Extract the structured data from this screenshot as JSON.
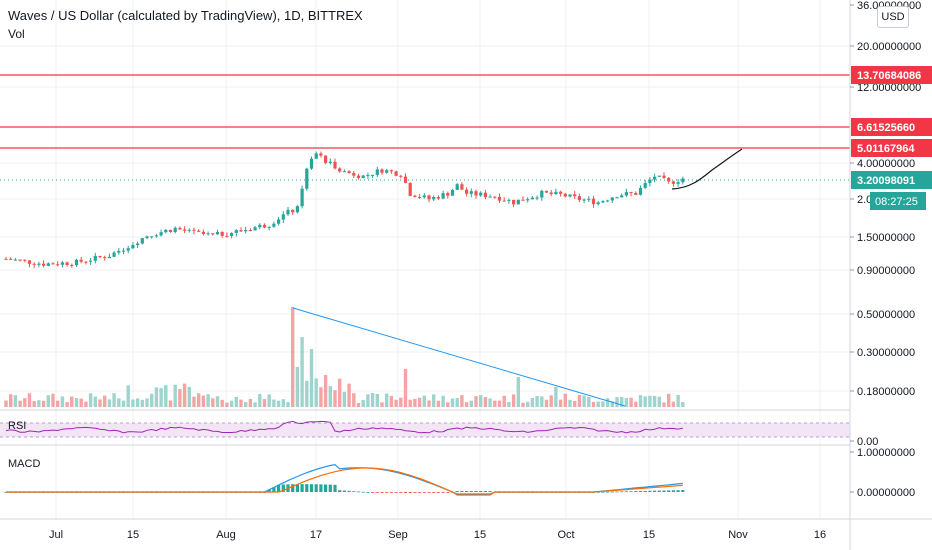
{
  "header": {
    "title": "Waves / US Dollar (calculated by TradingView), 1D, BITTREX",
    "volume_label": "Vol",
    "currency_button": "USD"
  },
  "chart_data": {
    "type": "candlestick",
    "title": "Waves / US Dollar (calculated by TradingView), 1D, BITTREX",
    "y_scale": "log",
    "price_axis_labels": [
      "36.00000000",
      "20.00000000",
      "12.00000000",
      "4.00000000",
      "2.00000000",
      "1.50000000",
      "0.90000000",
      "0.50000000",
      "0.30000000",
      "0.18000000",
      "0.00",
      "1.00000000",
      "0.00000000"
    ],
    "x_tick_labels": [
      "Jul",
      "15",
      "Aug",
      "17",
      "Sep",
      "15",
      "Oct",
      "15",
      "Nov",
      "16"
    ],
    "horizontal_levels": [
      {
        "label": "13.70684086",
        "color": "#f23645"
      },
      {
        "label": "6.61525660",
        "color": "#f23645"
      },
      {
        "label": "5.01167964",
        "color": "#f23645"
      }
    ],
    "last_price": {
      "label": "3.20098091",
      "color": "#26a69a"
    },
    "countdown": {
      "label": "08:27:25",
      "color": "#26a69a"
    },
    "projection": {
      "from": 3.0,
      "to": 5.01,
      "color": "#131722"
    },
    "volume_trendline": {
      "color": "#2196f3"
    },
    "indicators": [
      {
        "name": "RSI",
        "color": "#9c27b0",
        "band_color": "#e1bee7"
      },
      {
        "name": "MACD",
        "macd_color": "#2196f3",
        "signal_color": "#ff6d00",
        "histogram_up": "#26a69a",
        "histogram_down": "#ef5350"
      }
    ],
    "colors": {
      "up": "#26a69a",
      "down": "#ef5350",
      "up_volume": "#9ed4cd",
      "down_volume": "#f4a5a3"
    }
  }
}
